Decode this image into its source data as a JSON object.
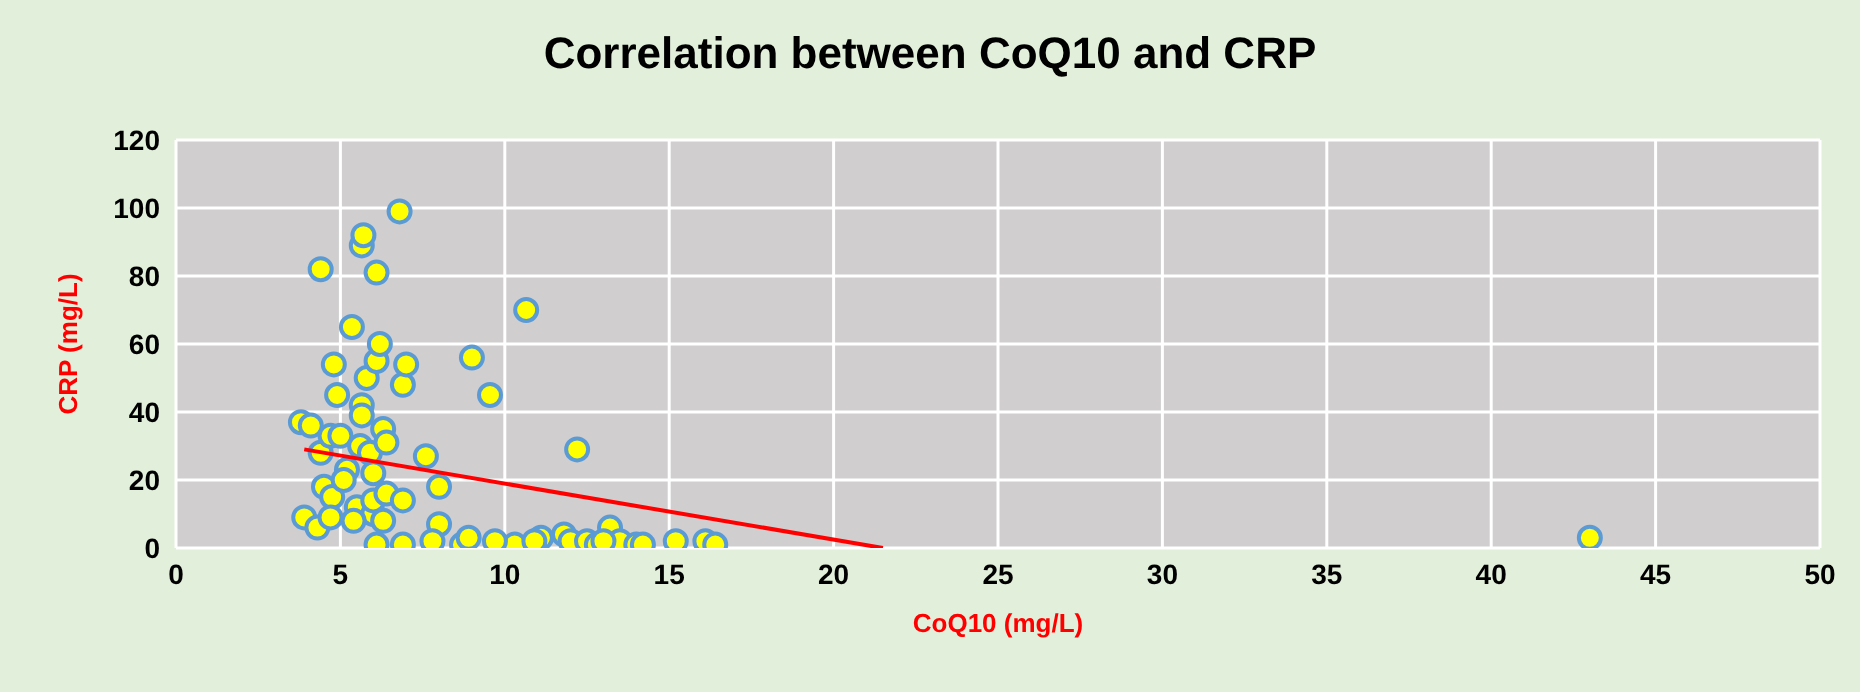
{
  "chart_data": {
    "type": "scatter",
    "title": "Correlation between CoQ10 and CRP",
    "xlabel": "CoQ10 (mg/L)",
    "ylabel": "CRP (mg/L)",
    "xlim": [
      0,
      50
    ],
    "xticks": [
      0,
      5,
      10,
      15,
      20,
      25,
      30,
      35,
      40,
      45,
      50
    ],
    "ylim": [
      0,
      120
    ],
    "yticks": [
      0,
      20,
      40,
      60,
      80,
      100,
      120
    ],
    "grid": true,
    "marker": "circle",
    "series": [
      {
        "color": "#ffff00",
        "x": [
          3.8,
          4.1,
          4.4,
          3.9,
          4.3,
          4.5,
          4.4,
          4.7,
          4.8,
          4.9,
          4.75,
          4.7,
          5.0,
          5.2,
          5.35,
          5.5,
          5.65,
          5.7,
          5.65,
          5.65,
          5.8,
          5.6,
          5.9,
          6.0,
          6.0,
          6.1,
          6.1,
          6.0,
          6.1,
          6.2,
          6.3,
          6.4,
          6.4,
          6.3,
          6.8,
          6.9,
          7.0,
          6.9,
          6.9,
          7.6,
          8.0,
          8.0,
          7.8,
          8.7,
          8.9,
          9.0,
          9.55,
          10.65,
          12.2,
          10.3,
          11.1,
          11.8,
          12.0,
          12.5,
          12.8,
          13.2,
          13.5,
          14.0,
          14.2,
          15.2,
          16.1,
          16.4,
          10.9,
          13.0,
          9.7,
          5.1,
          5.4,
          43
        ],
        "values": [
          37,
          36,
          82,
          9,
          6,
          18,
          28,
          33,
          54,
          45,
          15,
          9,
          33,
          23,
          65,
          12,
          89,
          92,
          42,
          39,
          50,
          30,
          28,
          10,
          22,
          81,
          55,
          14,
          1,
          60,
          35,
          31,
          16,
          8,
          99,
          48,
          54,
          14,
          1,
          27,
          18,
          7,
          2,
          1,
          3,
          56,
          45,
          70,
          29,
          1,
          3,
          4,
          2,
          2,
          1,
          6,
          2,
          1,
          1,
          2,
          2,
          1,
          2,
          2,
          2,
          20,
          8,
          3
        ]
      },
      {
        "type": "line",
        "color": "#ff0000",
        "marker": "none",
        "x": [
          3.9,
          21.5
        ],
        "values": [
          29,
          0
        ]
      }
    ]
  }
}
